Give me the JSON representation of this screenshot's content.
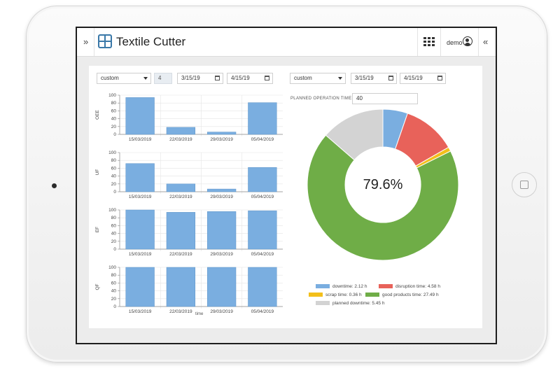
{
  "app": {
    "title": "Textile Cutter",
    "user": "demo"
  },
  "topbar": {
    "expand_icon": "»",
    "collapse_icon": "«"
  },
  "left_controls": {
    "range": "custom",
    "count": "4",
    "start_date": "3/15/19",
    "end_date": "4/15/19"
  },
  "right_controls": {
    "range": "custom",
    "start_date": "3/15/19",
    "end_date": "4/15/19"
  },
  "planned_operation": {
    "label": "PLANNED OPERATION TIME:",
    "value": "40"
  },
  "chart_data": [
    {
      "type": "bar",
      "ylabel": "OEE",
      "categories": [
        "15/03/2019",
        "22/03/2019",
        "29/03/2019",
        "05/04/2019"
      ],
      "values": [
        94,
        18,
        6,
        81
      ],
      "ylim": [
        0,
        100
      ],
      "yticks": [
        "0",
        "20",
        "40",
        "60",
        "80",
        "100"
      ]
    },
    {
      "type": "bar",
      "ylabel": "UF",
      "categories": [
        "15/03/2019",
        "22/03/2019",
        "29/03/2019",
        "05/04/2019"
      ],
      "values": [
        72,
        20,
        7,
        62
      ],
      "ylim": [
        0,
        100
      ],
      "yticks": [
        "0",
        "20",
        "40",
        "60",
        "80",
        "100"
      ]
    },
    {
      "type": "bar",
      "ylabel": "EF",
      "categories": [
        "15/03/2019",
        "22/03/2019",
        "29/03/2019",
        "05/04/2019"
      ],
      "values": [
        100,
        94,
        96,
        98
      ],
      "ylim": [
        0,
        100
      ],
      "yticks": [
        "0",
        "20",
        "40",
        "60",
        "80",
        "100"
      ]
    },
    {
      "type": "bar",
      "ylabel": "QF",
      "xlabel": "time",
      "categories": [
        "15/03/2019",
        "22/03/2019",
        "29/03/2019",
        "05/04/2019"
      ],
      "values": [
        100,
        100,
        100,
        100
      ],
      "ylim": [
        0,
        100
      ],
      "yticks": [
        "0",
        "20",
        "40",
        "60",
        "80",
        "100"
      ]
    },
    {
      "type": "pie",
      "center_label": "79.6%",
      "series": [
        {
          "name": "downtime",
          "label": "downtime:",
          "value_text": "2.12 h",
          "value": 2.12,
          "color": "#7aaee0"
        },
        {
          "name": "disruption time",
          "label": "disruption time:",
          "value_text": "4.58 h",
          "value": 4.58,
          "color": "#e8625a"
        },
        {
          "name": "scrap time",
          "label": "scrap time:",
          "value_text": "0.36 h",
          "value": 0.36,
          "color": "#f3bf1b"
        },
        {
          "name": "good products time",
          "label": "good products time:",
          "value_text": "27.49 h",
          "value": 27.49,
          "color": "#6fad47"
        },
        {
          "name": "planned downtime",
          "label": "planned downtime:",
          "value_text": "5.45 h",
          "value": 5.45,
          "color": "#d3d3d3"
        }
      ]
    }
  ],
  "colors": {
    "bar": "#7aaee0",
    "accent": "#3a78a8"
  }
}
